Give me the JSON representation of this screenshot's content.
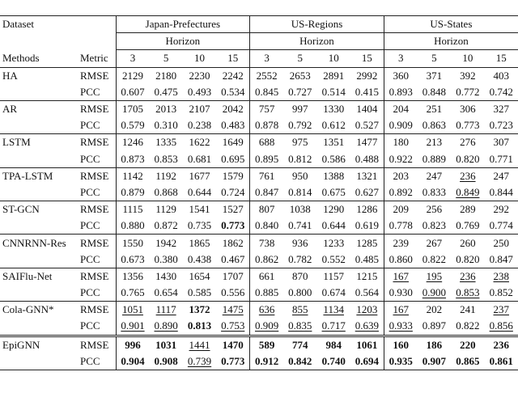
{
  "header": {
    "dataset_label": "Dataset",
    "datasets": [
      "Japan-Prefectures",
      "US-Regions",
      "US-States"
    ],
    "horizon_label": "Horizon",
    "methods_label": "Methods",
    "metric_label": "Metric",
    "horizons": [
      "3",
      "5",
      "10",
      "15"
    ]
  },
  "rows": [
    {
      "method": "HA",
      "metrics": [
        "RMSE",
        "PCC"
      ],
      "values": [
        [
          "2129",
          "2180",
          "2230",
          "2242",
          "2552",
          "2653",
          "2891",
          "2992",
          "360",
          "371",
          "392",
          "403"
        ],
        [
          "0.607",
          "0.475",
          "0.493",
          "0.534",
          "0.845",
          "0.727",
          "0.514",
          "0.415",
          "0.893",
          "0.848",
          "0.772",
          "0.742"
        ]
      ]
    },
    {
      "method": "AR",
      "metrics": [
        "RMSE",
        "PCC"
      ],
      "values": [
        [
          "1705",
          "2013",
          "2107",
          "2042",
          "757",
          "997",
          "1330",
          "1404",
          "204",
          "251",
          "306",
          "327"
        ],
        [
          "0.579",
          "0.310",
          "0.238",
          "0.483",
          "0.878",
          "0.792",
          "0.612",
          "0.527",
          "0.909",
          "0.863",
          "0.773",
          "0.723"
        ]
      ]
    },
    {
      "method": "LSTM",
      "metrics": [
        "RMSE",
        "PCC"
      ],
      "values": [
        [
          "1246",
          "1335",
          "1622",
          "1649",
          "688",
          "975",
          "1351",
          "1477",
          "180",
          "213",
          "276",
          "307"
        ],
        [
          "0.873",
          "0.853",
          "0.681",
          "0.695",
          "0.895",
          "0.812",
          "0.586",
          "0.488",
          "0.922",
          "0.889",
          "0.820",
          "0.771"
        ]
      ]
    },
    {
      "method": "TPA-LSTM",
      "metrics": [
        "RMSE",
        "PCC"
      ],
      "values": [
        [
          "1142",
          "1192",
          "1677",
          "1579",
          "761",
          "950",
          "1388",
          "1321",
          "203",
          "247",
          "236",
          "247"
        ],
        [
          "0.879",
          "0.868",
          "0.644",
          "0.724",
          "0.847",
          "0.814",
          "0.675",
          "0.627",
          "0.892",
          "0.833",
          "0.849",
          "0.844"
        ]
      ]
    },
    {
      "method": "ST-GCN",
      "metrics": [
        "RMSE",
        "PCC"
      ],
      "values": [
        [
          "1115",
          "1129",
          "1541",
          "1527",
          "807",
          "1038",
          "1290",
          "1286",
          "209",
          "256",
          "289",
          "292"
        ],
        [
          "0.880",
          "0.872",
          "0.735",
          "0.773",
          "0.840",
          "0.741",
          "0.644",
          "0.619",
          "0.778",
          "0.823",
          "0.769",
          "0.774"
        ]
      ]
    },
    {
      "method": "CNNRNN-Res",
      "metrics": [
        "RMSE",
        "PCC"
      ],
      "values": [
        [
          "1550",
          "1942",
          "1865",
          "1862",
          "738",
          "936",
          "1233",
          "1285",
          "239",
          "267",
          "260",
          "250"
        ],
        [
          "0.673",
          "0.380",
          "0.438",
          "0.467",
          "0.862",
          "0.782",
          "0.552",
          "0.485",
          "0.860",
          "0.822",
          "0.820",
          "0.847"
        ]
      ]
    },
    {
      "method": "SAIFlu-Net",
      "metrics": [
        "RMSE",
        "PCC"
      ],
      "values": [
        [
          "1356",
          "1430",
          "1654",
          "1707",
          "661",
          "870",
          "1157",
          "1215",
          "167",
          "195",
          "236",
          "238"
        ],
        [
          "0.765",
          "0.654",
          "0.585",
          "0.556",
          "0.885",
          "0.800",
          "0.674",
          "0.564",
          "0.930",
          "0.900",
          "0.853",
          "0.852"
        ]
      ]
    },
    {
      "method": "Cola-GNN*",
      "metrics": [
        "RMSE",
        "PCC"
      ],
      "values": [
        [
          "1051",
          "1117",
          "1372",
          "1475",
          "636",
          "855",
          "1134",
          "1203",
          "167",
          "202",
          "241",
          "237"
        ],
        [
          "0.901",
          "0.890",
          "0.813",
          "0.753",
          "0.909",
          "0.835",
          "0.717",
          "0.639",
          "0.933",
          "0.897",
          "0.822",
          "0.856"
        ]
      ]
    },
    {
      "method": "EpiGNN",
      "metrics": [
        "RMSE",
        "PCC"
      ],
      "values": [
        [
          "996",
          "1031",
          "1441",
          "1470",
          "589",
          "774",
          "984",
          "1061",
          "160",
          "186",
          "220",
          "236"
        ],
        [
          "0.904",
          "0.908",
          "0.739",
          "0.773",
          "0.912",
          "0.842",
          "0.740",
          "0.694",
          "0.935",
          "0.907",
          "0.865",
          "0.861"
        ]
      ]
    }
  ]
}
